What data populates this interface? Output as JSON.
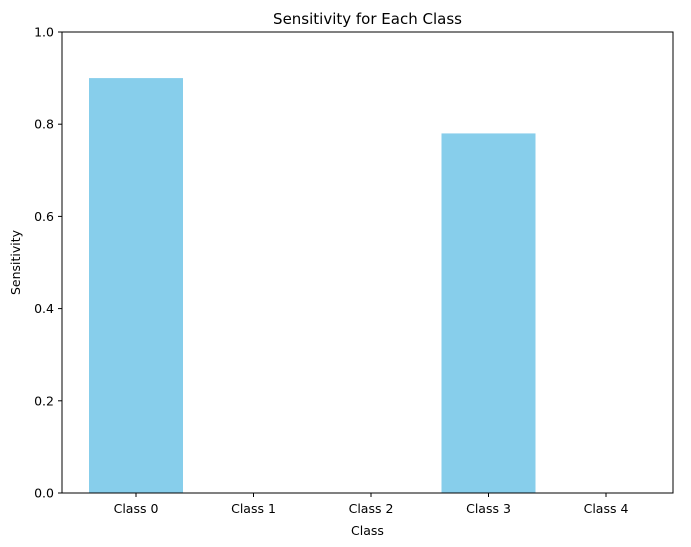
{
  "chart_data": {
    "type": "bar",
    "title": "Sensitivity for Each Class",
    "xlabel": "Class",
    "ylabel": "Sensitivity",
    "categories": [
      "Class 0",
      "Class 1",
      "Class 2",
      "Class 3",
      "Class 4"
    ],
    "values": [
      0.9,
      0.0,
      0.0,
      0.78,
      0.0
    ],
    "ylim": [
      0,
      1
    ],
    "yticks": [
      0.0,
      0.2,
      0.4,
      0.6,
      0.8,
      1.0
    ],
    "ytick_labels": [
      "0.0",
      "0.2",
      "0.4",
      "0.6",
      "0.8",
      "1.0"
    ],
    "grid": false,
    "bar_color": "#87ceeb"
  }
}
